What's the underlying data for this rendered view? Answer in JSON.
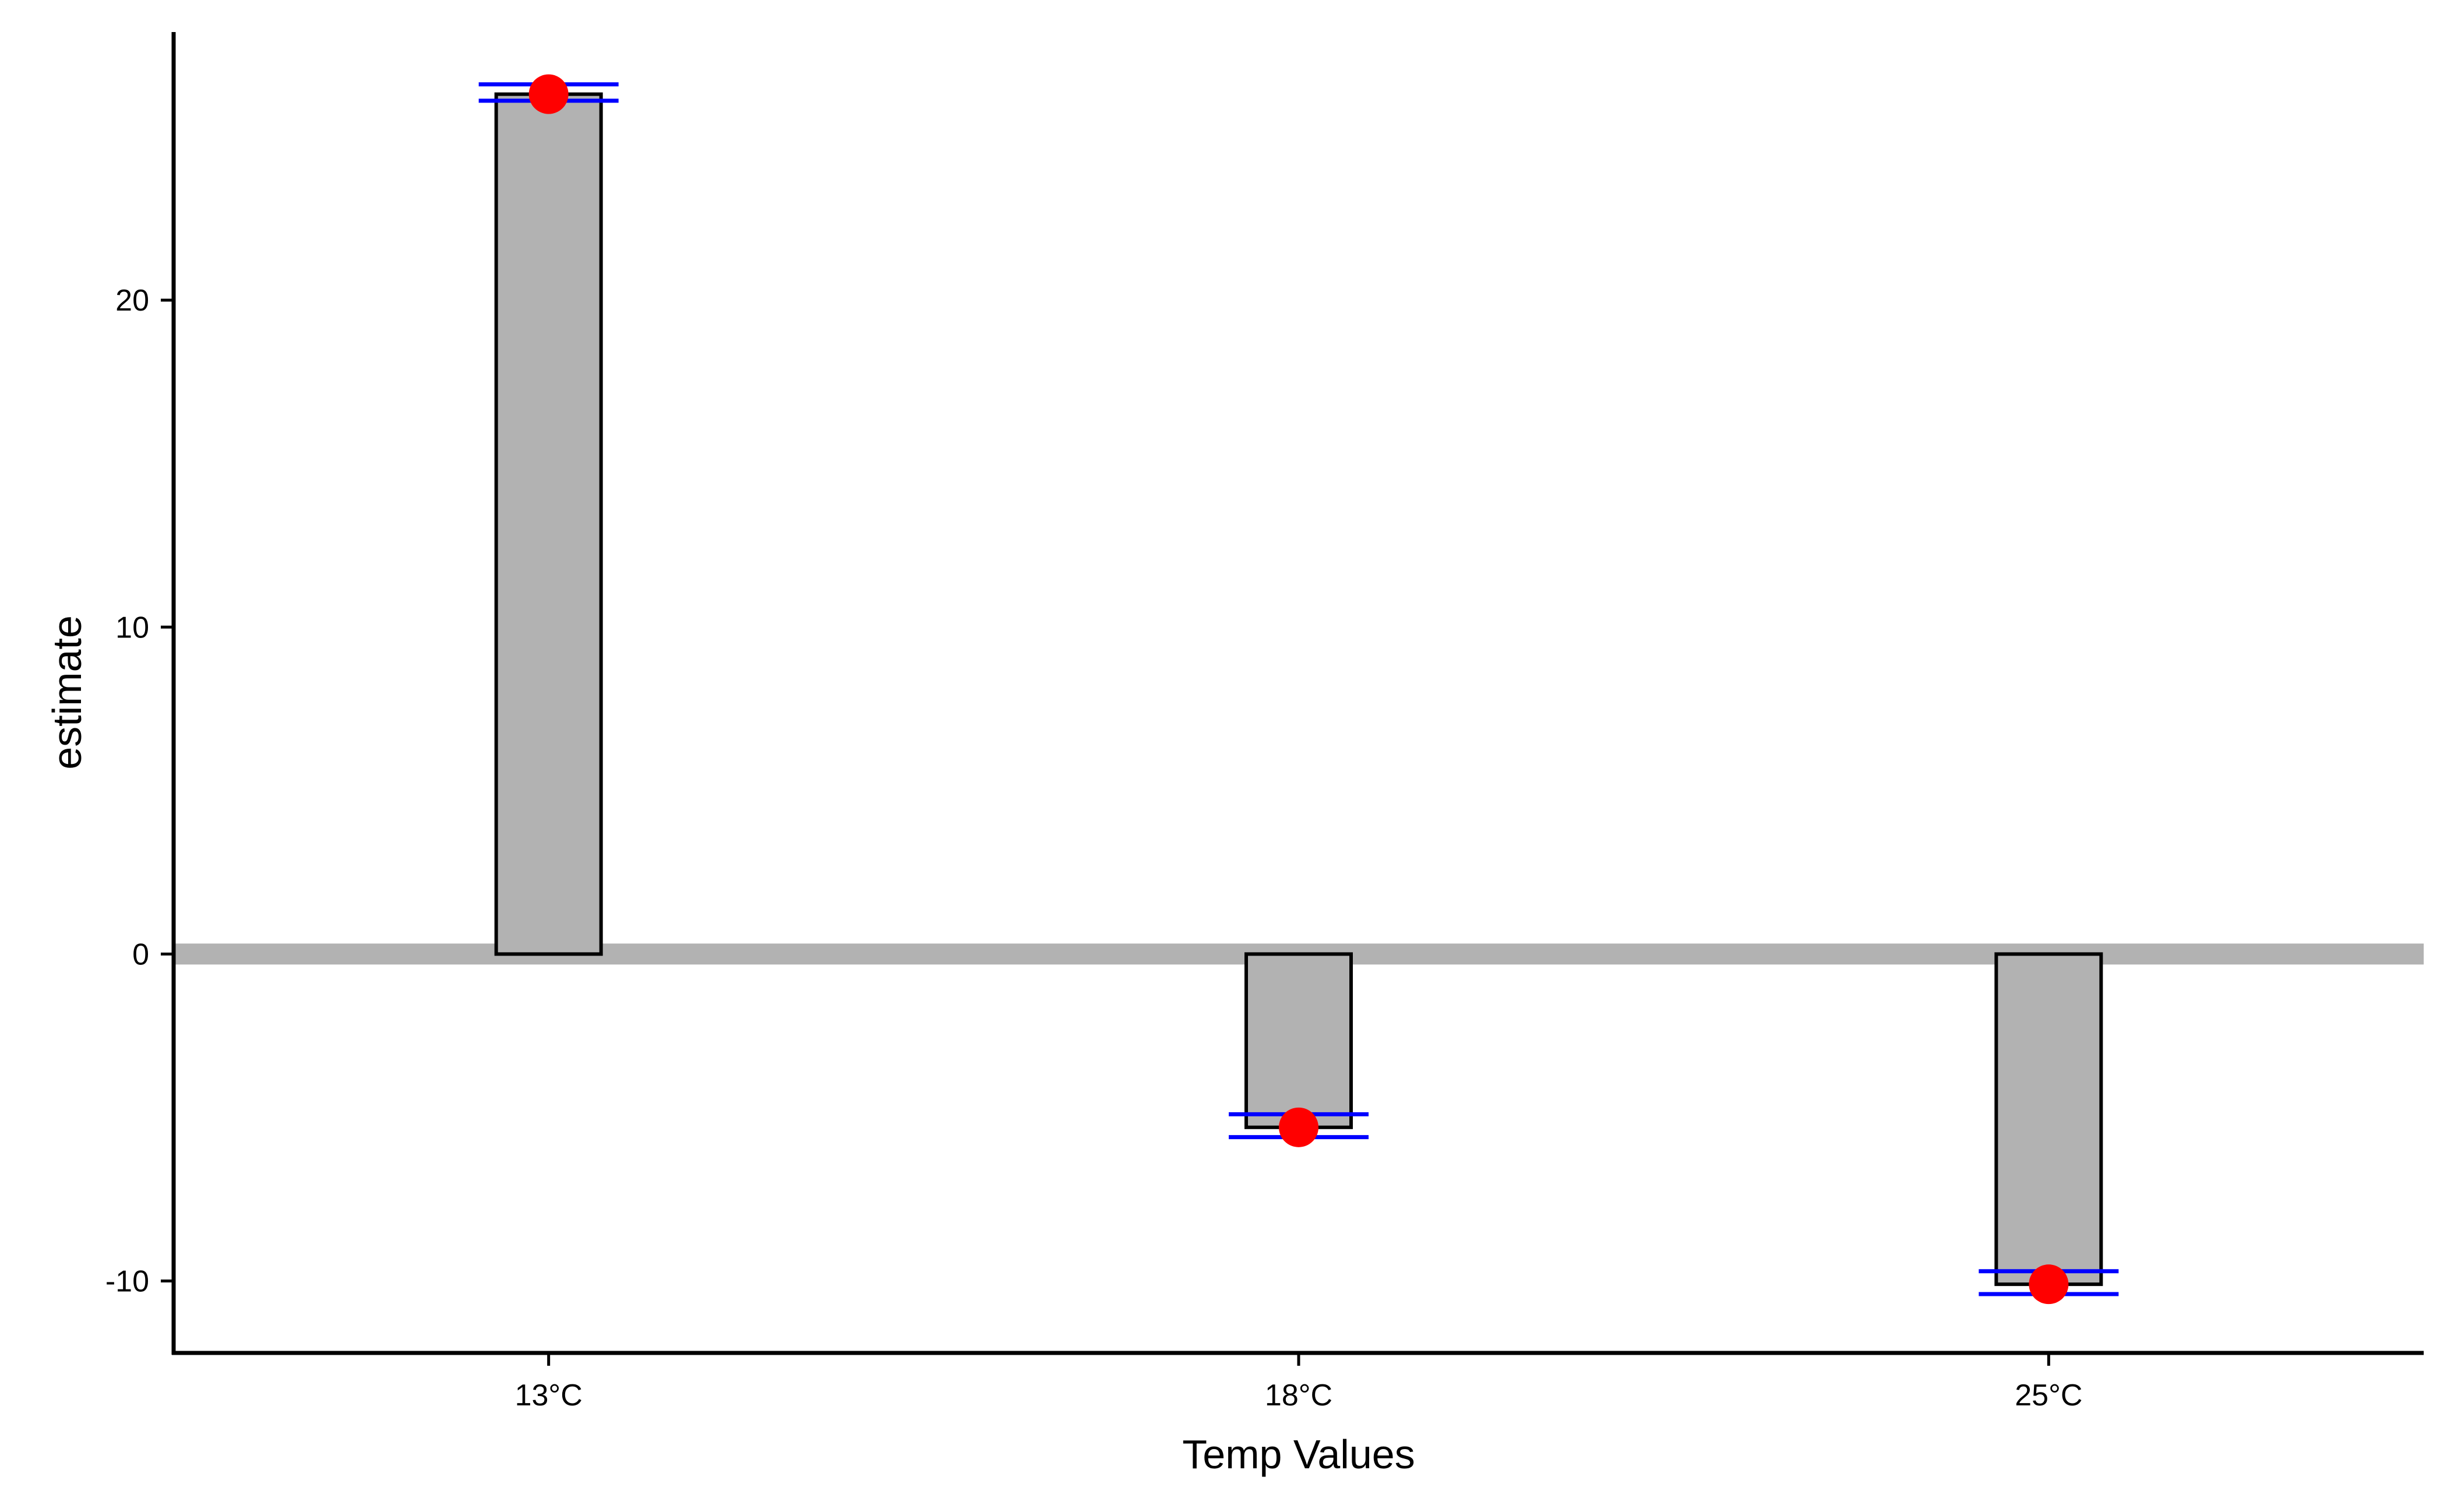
{
  "chart_data": {
    "type": "bar",
    "categories": [
      "13°C",
      "18°C",
      "25°C"
    ],
    "values": [
      26.3,
      -5.3,
      -10.1
    ],
    "error_low": [
      26.1,
      -5.6,
      -10.4
    ],
    "error_high": [
      26.6,
      -4.9,
      -9.7
    ],
    "xlabel": "Temp Values",
    "ylabel": "estimate",
    "ylim": [
      -12.2,
      28.2
    ],
    "yticks": [
      -10,
      0,
      10,
      20
    ],
    "ytick_labels": [
      "-10",
      "0",
      "10",
      "20"
    ],
    "reference_line": 0,
    "grid": false,
    "legend": "none",
    "colors": {
      "bar_fill": "#b2b2b2",
      "bar_stroke": "#000000",
      "point": "#ff0000",
      "error_bar": "#0000ff",
      "reference_line": "#b2b2b2",
      "axis": "#000000"
    }
  }
}
